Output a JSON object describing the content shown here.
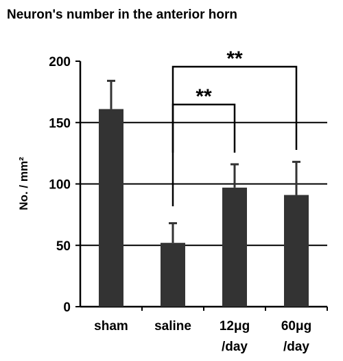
{
  "chart_data": {
    "type": "bar",
    "title": "Neuron's number in the anterior horn",
    "y_label": "No. / mm²",
    "categories": [
      "sham",
      "saline",
      "12μg /day",
      "60μg /day"
    ],
    "values": [
      161,
      52,
      97,
      91
    ],
    "errors": [
      23,
      16,
      19,
      27
    ],
    "color": "#333333",
    "ylim": [
      0,
      200
    ],
    "yticks": [
      0,
      50,
      100,
      150,
      200
    ],
    "grid": true,
    "annotations": [
      "**",
      "**"
    ]
  }
}
